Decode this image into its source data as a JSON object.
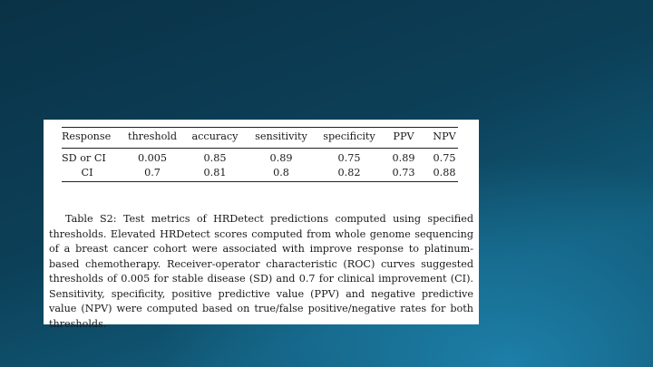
{
  "table": {
    "headers": [
      "Response",
      "threshold",
      "accuracy",
      "sensitivity",
      "specificity",
      "PPV",
      "NPV"
    ],
    "rows": [
      [
        "SD or CI",
        "0.005",
        "0.85",
        "0.89",
        "0.75",
        "0.89",
        "0.75"
      ],
      [
        "CI",
        "0.7",
        "0.81",
        "0.8",
        "0.82",
        "0.73",
        "0.88"
      ]
    ]
  },
  "caption": "Table S2: Test metrics of HRDetect predictions computed using specified thresholds. Elevated HRDetect scores computed from whole genome sequencing of a breast cancer cohort were associated with improve response to platinum-based chemotherapy. Receiver-operator characteristic (ROC) curves suggested thresholds of 0.005 for stable disease (SD) and 0.7 for clinical improvement (CI). Sensitivity, specificity, positive predictive value (PPV) and negative predictive value (NPV) were computed based on true/false positive/negative rates for both thresholds."
}
